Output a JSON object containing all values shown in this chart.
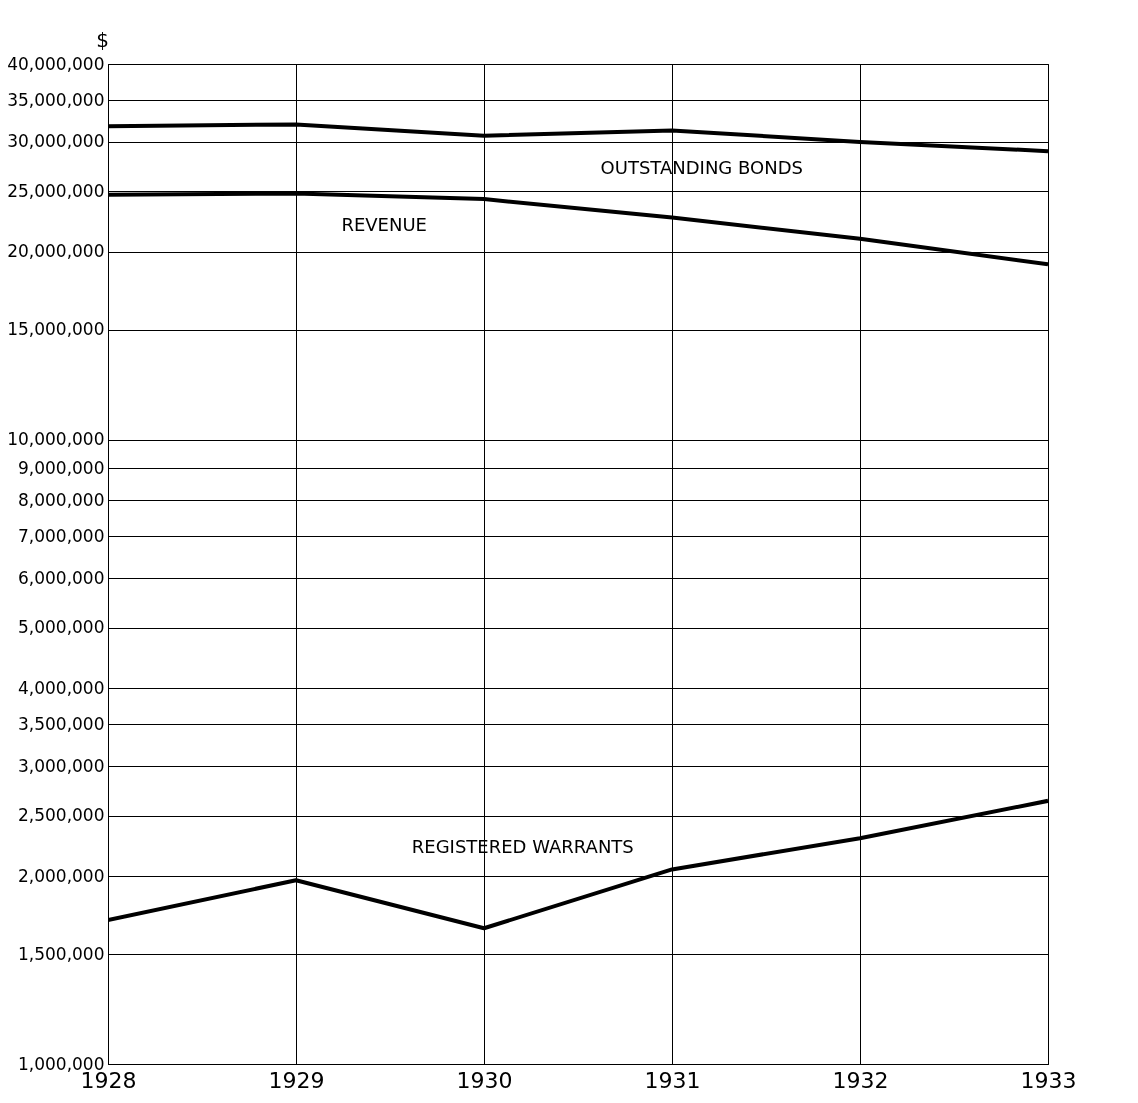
{
  "chart_data": {
    "type": "line",
    "ylabel": "$",
    "x": [
      1928,
      1929,
      1930,
      1931,
      1932,
      1933
    ],
    "series": [
      {
        "name": "OUTSTANDING BONDS",
        "color": "#000000",
        "values": [
          31800000,
          32000000,
          30700000,
          31300000,
          30000000,
          29000000
        ]
      },
      {
        "name": "REVENUE",
        "color": "#000000",
        "values": [
          24700000,
          24800000,
          24300000,
          22700000,
          21000000,
          19100000
        ]
      },
      {
        "name": "REGISTERED WARRANTS",
        "color": "#000000",
        "values": [
          1700000,
          1970000,
          1650000,
          2050000,
          2300000,
          2640000
        ]
      }
    ],
    "log": true,
    "xlim": [
      1928,
      1933
    ],
    "xticks": [
      1928,
      1929,
      1930,
      1931,
      1932,
      1933
    ],
    "ylim": [
      1000000,
      40000000
    ],
    "yticks": [
      {
        "value": 1000000,
        "label": "1,000,000"
      },
      {
        "value": 1500000,
        "label": "1,500,000"
      },
      {
        "value": 2000000,
        "label": "2,000,000"
      },
      {
        "value": 2500000,
        "label": "2,500,000"
      },
      {
        "value": 3000000,
        "label": "3,000,000"
      },
      {
        "value": 3500000,
        "label": "3,500,000"
      },
      {
        "value": 4000000,
        "label": "4,000,000"
      },
      {
        "value": 5000000,
        "label": "5,000,000"
      },
      {
        "value": 6000000,
        "label": "6,000,000"
      },
      {
        "value": 7000000,
        "label": "7,000,000"
      },
      {
        "value": 8000000,
        "label": "8,000,000"
      },
      {
        "value": 9000000,
        "label": "9,000,000"
      },
      {
        "value": 10000000,
        "label": "10,000,000"
      },
      {
        "value": 15000000,
        "label": "15,000,000"
      },
      {
        "value": 20000000,
        "label": "20,000,000"
      },
      {
        "value": 25000000,
        "label": "25,000,000"
      },
      {
        "value": 30000000,
        "label": "30,000,000"
      },
      {
        "value": 35000000,
        "label": "35,000,000"
      },
      {
        "value": 40000000,
        "label": "40,000,000"
      }
    ],
    "grid": true,
    "legend": false,
    "marker": "none",
    "line_style": "solid"
  }
}
